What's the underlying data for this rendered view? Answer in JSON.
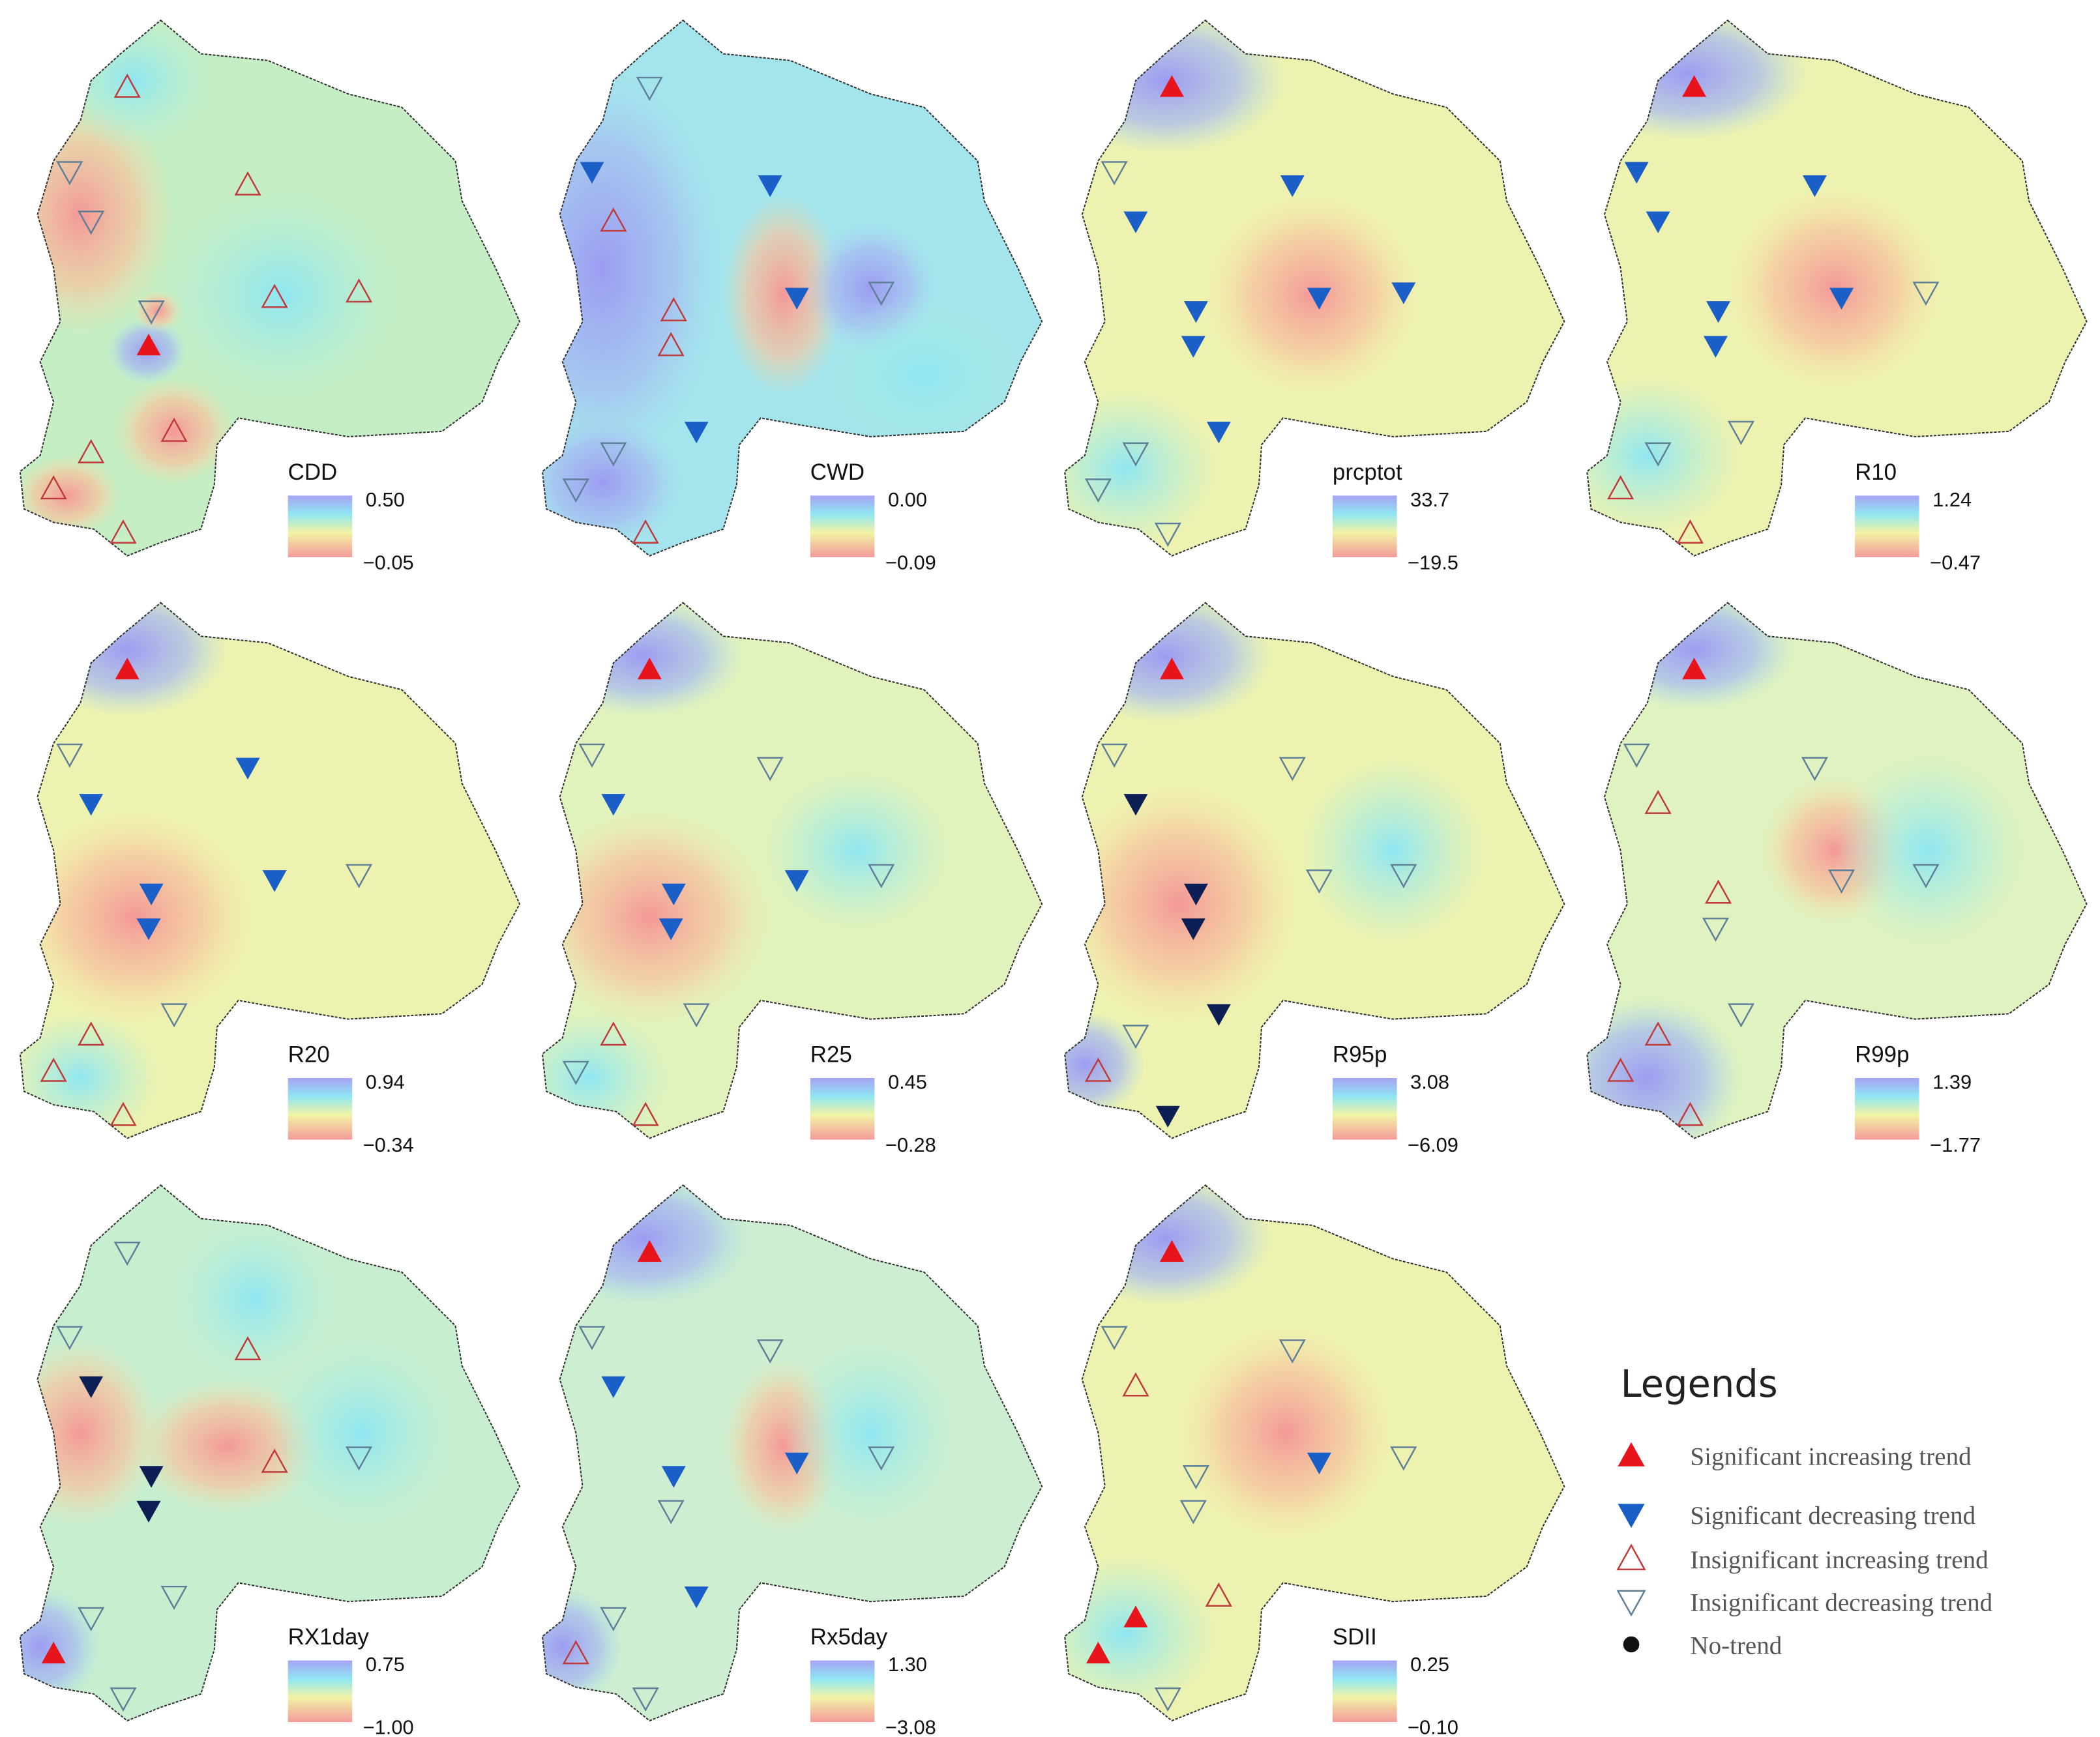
{
  "panels": [
    {
      "index": "CDD",
      "high": "0.50",
      "low": "−0.05"
    },
    {
      "index": "CWD",
      "high": "0.00",
      "low": "−0.09"
    },
    {
      "index": "prcptot",
      "high": "33.7",
      "low": "−19.5"
    },
    {
      "index": "R10",
      "high": "1.24",
      "low": "−0.47"
    },
    {
      "index": "R20",
      "high": "0.94",
      "low": "−0.34"
    },
    {
      "index": "R25",
      "high": "0.45",
      "low": "−0.28"
    },
    {
      "index": "R95p",
      "high": "3.08",
      "low": "−6.09"
    },
    {
      "index": "R99p",
      "high": "1.39",
      "low": "−1.77"
    },
    {
      "index": "RX1day",
      "high": "0.75",
      "low": "−1.00"
    },
    {
      "index": "Rx5day",
      "high": "1.30",
      "low": "−3.08"
    },
    {
      "index": "SDII",
      "high": "0.25",
      "low": "−0.10"
    }
  ],
  "legend": {
    "title": "Legends",
    "items": [
      "Significant increasing trend",
      "Significant decreasing trend",
      "Insignificant increasing trend",
      "Insignificant decreasing trend",
      "No-trend"
    ]
  }
}
